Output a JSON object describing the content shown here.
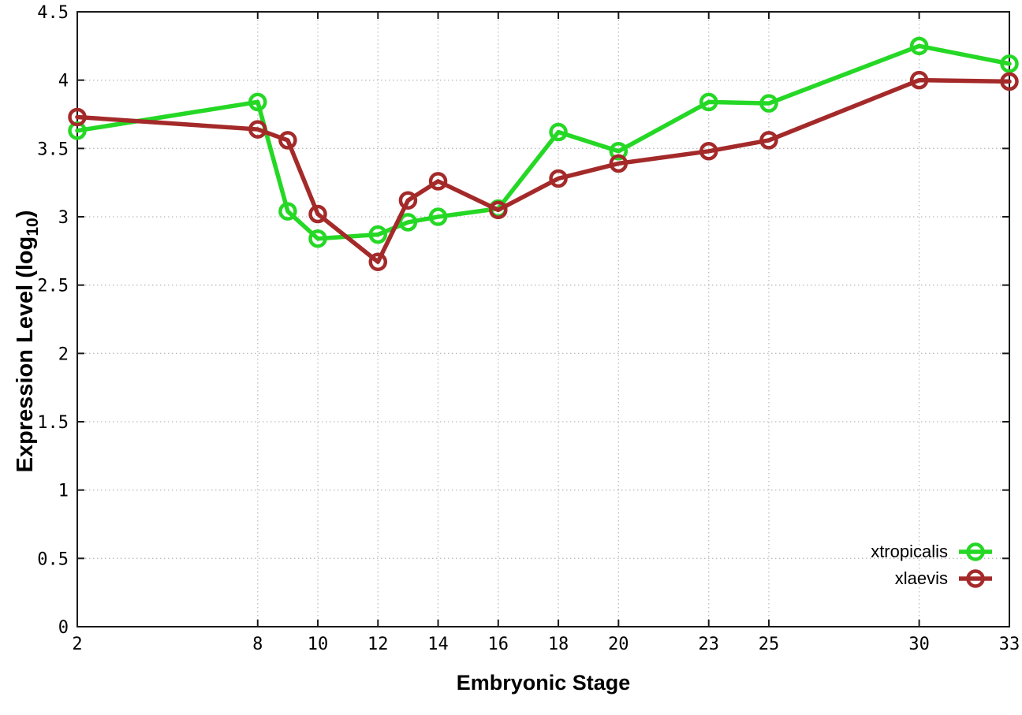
{
  "chart_data": {
    "type": "line",
    "title": "",
    "xlabel": "Embryonic Stage",
    "ylabel": "Expression Level (log10)",
    "ylabel_parts": {
      "pre": "Expression Level (log",
      "sub": "10",
      "post": ")"
    },
    "x": [
      2,
      8,
      9,
      10,
      12,
      13,
      14,
      16,
      18,
      20,
      23,
      25,
      30,
      33
    ],
    "series": [
      {
        "name": "xtropicalis",
        "color": "#25d825",
        "marker": "open-circle",
        "values": [
          3.63,
          3.84,
          3.04,
          2.84,
          2.87,
          2.96,
          3.0,
          3.06,
          3.62,
          3.48,
          3.84,
          3.83,
          4.25,
          4.12
        ]
      },
      {
        "name": "xlaevis",
        "color": "#a42a2a",
        "marker": "open-circle",
        "values": [
          3.73,
          3.64,
          3.56,
          3.02,
          2.67,
          3.12,
          3.26,
          3.05,
          3.28,
          3.39,
          3.48,
          3.56,
          4.0,
          3.99
        ]
      }
    ],
    "x_ticks": {
      "values": [
        2,
        8,
        10,
        12,
        14,
        16,
        18,
        20,
        23,
        25,
        30,
        33
      ],
      "labels": [
        "2",
        "8",
        "10",
        "12",
        "14",
        "16",
        "18",
        "20",
        "23",
        "25",
        "30",
        "33"
      ]
    },
    "y_ticks": {
      "values": [
        0,
        0.5,
        1,
        1.5,
        2,
        2.5,
        3,
        3.5,
        4,
        4.5
      ],
      "labels": [
        "0",
        "0.5",
        "1",
        "1.5",
        "2",
        "2.5",
        "3",
        "3.5",
        "4",
        "4.5"
      ]
    },
    "xlim": [
      2,
      33
    ],
    "ylim": [
      0,
      4.5
    ],
    "grid": true,
    "grid_style": "dotted",
    "legend_position": "inside-bottom-right",
    "background_color": "#ffffff",
    "axis_color": "#1a1a1a",
    "grid_color": "#bcbcbc",
    "tick_label_color": "#000000"
  }
}
